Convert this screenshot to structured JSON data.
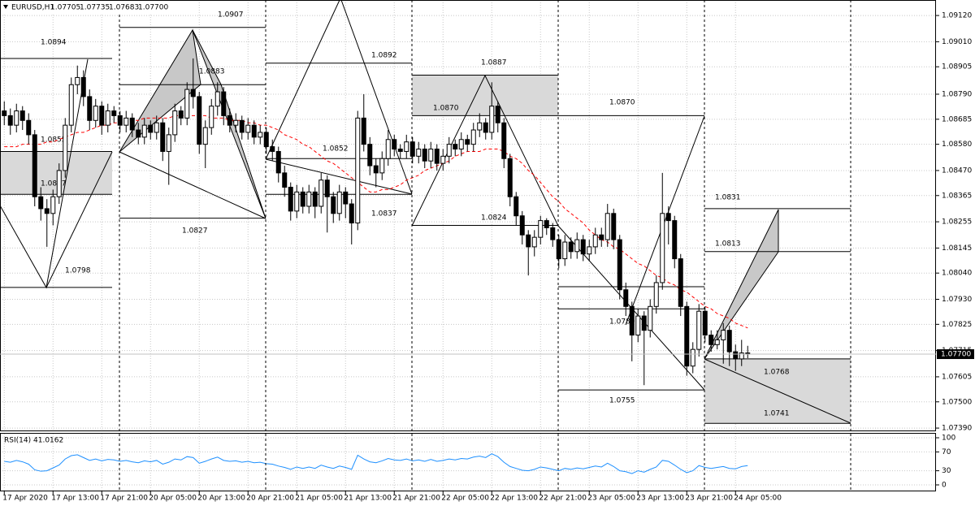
{
  "chart_data": {
    "type": "candlestick",
    "symbol": "EURUSD,H1",
    "last_candle_labels": [
      "1.07705",
      "1.07735",
      "1.07683",
      "1.07700"
    ],
    "ohlc": [
      [
        1.0872,
        1.0876,
        1.0866,
        1.087
      ],
      [
        1.087,
        1.0873,
        1.0862,
        1.0866
      ],
      [
        1.0866,
        1.0875,
        1.0863,
        1.0872
      ],
      [
        1.0872,
        1.0874,
        1.0864,
        1.0868
      ],
      [
        1.0868,
        1.0871,
        1.0858,
        1.0862
      ],
      [
        1.0862,
        1.0864,
        1.0832,
        1.0836
      ],
      [
        1.0836,
        1.084,
        1.0826,
        1.0831
      ],
      [
        1.0831,
        1.0835,
        1.0815,
        1.0829
      ],
      [
        1.0829,
        1.0839,
        1.0824,
        1.0836
      ],
      [
        1.0836,
        1.085,
        1.0833,
        1.0847
      ],
      [
        1.0847,
        1.0869,
        1.0844,
        1.0866
      ],
      [
        1.0866,
        1.0886,
        1.0863,
        1.0883
      ],
      [
        1.0883,
        1.0891,
        1.0879,
        1.0886
      ],
      [
        1.0886,
        1.0889,
        1.0874,
        1.0878
      ],
      [
        1.0878,
        1.0881,
        1.0864,
        1.0868
      ],
      [
        1.0868,
        1.0877,
        1.0865,
        1.0874
      ],
      [
        1.0874,
        1.0876,
        1.0862,
        1.0866
      ],
      [
        1.0866,
        1.0875,
        1.0863,
        1.0872
      ],
      [
        1.0872,
        1.0874,
        1.0867,
        1.087
      ],
      [
        1.087,
        1.0872,
        1.0863,
        1.0866
      ],
      [
        1.0866,
        1.0872,
        1.0863,
        1.0869
      ],
      [
        1.0869,
        1.0871,
        1.0861,
        1.0864
      ],
      [
        1.0864,
        1.0867,
        1.0858,
        1.0861
      ],
      [
        1.0861,
        1.0869,
        1.0858,
        1.0866
      ],
      [
        1.0866,
        1.0868,
        1.086,
        1.0863
      ],
      [
        1.0863,
        1.087,
        1.086,
        1.0867
      ],
      [
        1.0867,
        1.0869,
        1.0851,
        1.0855
      ],
      [
        1.0855,
        1.0865,
        1.0841,
        1.0862
      ],
      [
        1.0862,
        1.0875,
        1.0859,
        1.0872
      ],
      [
        1.0872,
        1.0874,
        1.0866,
        1.0869
      ],
      [
        1.0869,
        1.0884,
        1.0866,
        1.0881
      ],
      [
        1.0881,
        1.0894,
        1.0873,
        1.0878
      ],
      [
        1.0878,
        1.088,
        1.0854,
        1.0858
      ],
      [
        1.0858,
        1.0868,
        1.0848,
        1.0865
      ],
      [
        1.0865,
        1.0877,
        1.0862,
        1.0874
      ],
      [
        1.0874,
        1.0884,
        1.087,
        1.088
      ],
      [
        1.088,
        1.0882,
        1.0866,
        1.087
      ],
      [
        1.087,
        1.0873,
        1.0863,
        1.0866
      ],
      [
        1.0866,
        1.0871,
        1.0863,
        1.0868
      ],
      [
        1.0868,
        1.087,
        1.086,
        1.0863
      ],
      [
        1.0863,
        1.0869,
        1.086,
        1.0866
      ],
      [
        1.0866,
        1.0868,
        1.0858,
        1.0861
      ],
      [
        1.0861,
        1.0866,
        1.0858,
        1.0863
      ],
      [
        1.0863,
        1.0865,
        1.0854,
        1.0857
      ],
      [
        1.0857,
        1.086,
        1.0851,
        1.0855
      ],
      [
        1.0855,
        1.0857,
        1.0842,
        1.0846
      ],
      [
        1.0846,
        1.0849,
        1.0836,
        1.084
      ],
      [
        1.084,
        1.0842,
        1.0826,
        1.083
      ],
      [
        1.083,
        1.0841,
        1.0827,
        1.0838
      ],
      [
        1.0838,
        1.084,
        1.0829,
        1.0832
      ],
      [
        1.0832,
        1.0841,
        1.0829,
        1.0838
      ],
      [
        1.0838,
        1.084,
        1.0827,
        1.0832
      ],
      [
        1.0832,
        1.0846,
        1.0829,
        1.0843
      ],
      [
        1.0843,
        1.0845,
        1.0821,
        1.0836
      ],
      [
        1.0836,
        1.0838,
        1.0825,
        1.0829
      ],
      [
        1.0829,
        1.0841,
        1.0826,
        1.0838
      ],
      [
        1.0838,
        1.084,
        1.0827,
        1.0833
      ],
      [
        1.0833,
        1.0835,
        1.0816,
        1.0825
      ],
      [
        1.0825,
        1.0872,
        1.0822,
        1.0869
      ],
      [
        1.0869,
        1.0879,
        1.0855,
        1.0858
      ],
      [
        1.0858,
        1.0861,
        1.0845,
        1.0849
      ],
      [
        1.0849,
        1.0852,
        1.084,
        1.0846
      ],
      [
        1.0846,
        1.0855,
        1.0843,
        1.0852
      ],
      [
        1.0852,
        1.0864,
        1.0849,
        1.086
      ],
      [
        1.086,
        1.0862,
        1.0853,
        1.0856
      ],
      [
        1.0856,
        1.0858,
        1.0852,
        1.0855
      ],
      [
        1.0855,
        1.0862,
        1.0852,
        1.0859
      ],
      [
        1.0859,
        1.0861,
        1.085,
        1.0853
      ],
      [
        1.0853,
        1.0859,
        1.085,
        1.0856
      ],
      [
        1.0856,
        1.0858,
        1.0848,
        1.0851
      ],
      [
        1.0851,
        1.0859,
        1.0848,
        1.0856
      ],
      [
        1.0856,
        1.0858,
        1.0847,
        1.085
      ],
      [
        1.085,
        1.0856,
        1.0847,
        1.0853
      ],
      [
        1.0853,
        1.0861,
        1.085,
        1.0858
      ],
      [
        1.0858,
        1.086,
        1.0853,
        1.0856
      ],
      [
        1.0856,
        1.0863,
        1.0853,
        1.086
      ],
      [
        1.086,
        1.0862,
        1.0855,
        1.0858
      ],
      [
        1.0858,
        1.0867,
        1.0855,
        1.0864
      ],
      [
        1.0864,
        1.0871,
        1.0861,
        1.0867
      ],
      [
        1.0867,
        1.0869,
        1.086,
        1.0863
      ],
      [
        1.0863,
        1.0884,
        1.086,
        1.0874
      ],
      [
        1.0874,
        1.0876,
        1.0863,
        1.0867
      ],
      [
        1.0867,
        1.0869,
        1.0848,
        1.0852
      ],
      [
        1.0852,
        1.0854,
        1.0832,
        1.0836
      ],
      [
        1.0836,
        1.0838,
        1.0824,
        1.0828
      ],
      [
        1.0828,
        1.083,
        1.0816,
        1.082
      ],
      [
        1.082,
        1.0822,
        1.0803,
        1.0815
      ],
      [
        1.0815,
        1.0822,
        1.0811,
        1.0819
      ],
      [
        1.0819,
        1.0828,
        1.0816,
        1.0826
      ],
      [
        1.0826,
        1.0827,
        1.082,
        1.0823
      ],
      [
        1.0823,
        1.0825,
        1.0815,
        1.0818
      ],
      [
        1.0818,
        1.082,
        1.0806,
        1.081
      ],
      [
        1.081,
        1.082,
        1.0807,
        1.0817
      ],
      [
        1.0817,
        1.0819,
        1.081,
        1.0813
      ],
      [
        1.0813,
        1.0821,
        1.081,
        1.0818
      ],
      [
        1.0818,
        1.082,
        1.0809,
        1.0812
      ],
      [
        1.0812,
        1.0818,
        1.0809,
        1.0815
      ],
      [
        1.0815,
        1.0823,
        1.0812,
        1.082
      ],
      [
        1.082,
        1.0823,
        1.0815,
        1.0818
      ],
      [
        1.0818,
        1.0833,
        1.0815,
        1.0829
      ],
      [
        1.0829,
        1.0831,
        1.0814,
        1.0818
      ],
      [
        1.0818,
        1.082,
        1.0793,
        1.0797
      ],
      [
        1.0797,
        1.08,
        1.0786,
        1.079
      ],
      [
        1.079,
        1.0792,
        1.0767,
        1.0778
      ],
      [
        1.0778,
        1.0789,
        1.0775,
        1.0786
      ],
      [
        1.0786,
        1.0788,
        1.0757,
        1.078
      ],
      [
        1.078,
        1.0793,
        1.0777,
        1.079
      ],
      [
        1.079,
        1.0803,
        1.0787,
        1.08
      ],
      [
        1.08,
        1.0846,
        1.0797,
        1.0829
      ],
      [
        1.0829,
        1.0832,
        1.0816,
        1.0826
      ],
      [
        1.0826,
        1.0828,
        1.0806,
        1.081
      ],
      [
        1.081,
        1.0812,
        1.0786,
        1.079
      ],
      [
        1.079,
        1.0792,
        1.0761,
        1.0765
      ],
      [
        1.0765,
        1.0775,
        1.0762,
        1.0772
      ],
      [
        1.0772,
        1.0791,
        1.0769,
        1.0788
      ],
      [
        1.0788,
        1.079,
        1.0775,
        1.0778
      ],
      [
        1.0778,
        1.078,
        1.0771,
        1.0774
      ],
      [
        1.0774,
        1.078,
        1.0772,
        1.0776
      ],
      [
        1.0776,
        1.0783,
        1.0766,
        1.078
      ],
      [
        1.078,
        1.0782,
        1.0765,
        1.0771
      ],
      [
        1.0771,
        1.0774,
        1.0763,
        1.0768
      ],
      [
        1.0768,
        1.0776,
        1.0765,
        1.07705
      ],
      [
        1.07705,
        1.07735,
        1.07683,
        1.077
      ]
    ],
    "ma": {
      "color": "#ff0000",
      "values": [
        1.0857,
        1.0857,
        1.0857,
        1.0858,
        1.0858,
        1.0858,
        1.0858,
        1.0859,
        1.0859,
        1.086,
        1.0861,
        1.0862,
        1.0863,
        1.0863,
        1.0864,
        1.0865,
        1.0866,
        1.0866,
        1.0867,
        1.0867,
        1.0868,
        1.0868,
        1.0868,
        1.0869,
        1.0869,
        1.0869,
        1.0869,
        1.0869,
        1.087,
        1.087,
        1.087,
        1.087,
        1.087,
        1.087,
        1.0869,
        1.0869,
        1.0869,
        1.0868,
        1.0868,
        1.0868,
        1.0867,
        1.0867,
        1.0866,
        1.0866,
        1.0865,
        1.0864,
        1.0862,
        1.0861,
        1.086,
        1.0858,
        1.0857,
        1.0855,
        1.0853,
        1.0851,
        1.085,
        1.0848,
        1.0846,
        1.0844,
        1.0842,
        1.084,
        1.0838,
        1.0838,
        1.0839,
        1.0839,
        1.084,
        1.0841,
        1.0843,
        1.0844,
        1.0845,
        1.0847,
        1.0848,
        1.0849,
        1.085,
        1.0851,
        1.0853,
        1.0854,
        1.0855,
        1.0855,
        1.0855,
        1.0856,
        1.0856,
        1.0856,
        1.0855,
        1.0853,
        1.0852,
        1.085,
        1.0847,
        1.0845,
        1.0842,
        1.0839,
        1.0836,
        1.0834,
        1.0831,
        1.0829,
        1.0827,
        1.0825,
        1.0822,
        1.082,
        1.0818,
        1.0817,
        1.0815,
        1.0814,
        1.0812,
        1.081,
        1.0808,
        1.0807,
        1.0805,
        1.0803,
        1.0802,
        1.08,
        1.0799,
        1.0797,
        1.0796,
        1.0794,
        1.0792,
        1.079,
        1.0789,
        1.0787,
        1.0786,
        1.0785,
        1.0783,
        1.0782,
        1.0781
      ]
    },
    "xlim": [
      -0.7,
      152.9
    ],
    "ylim": [
      1.0738,
      1.09185
    ],
    "xticks": [
      {
        "value": 0,
        "label": "17 Apr 2020"
      },
      {
        "value": 8,
        "label": "17 Apr 13:00"
      },
      {
        "value": 16,
        "label": "17 Apr 21:00"
      },
      {
        "value": 24,
        "label": "20 Apr 05:00"
      },
      {
        "value": 32,
        "label": "20 Apr 13:00"
      },
      {
        "value": 40,
        "label": "20 Apr 21:00"
      },
      {
        "value": 48,
        "label": "21 Apr 05:00"
      },
      {
        "value": 56,
        "label": "21 Apr 13:00"
      },
      {
        "value": 64,
        "label": "21 Apr 21:00"
      },
      {
        "value": 72,
        "label": "22 Apr 05:00"
      },
      {
        "value": 80,
        "label": "22 Apr 13:00"
      },
      {
        "value": 88,
        "label": "22 Apr 21:00"
      },
      {
        "value": 96,
        "label": "23 Apr 05:00"
      },
      {
        "value": 104,
        "label": "23 Apr 13:00"
      },
      {
        "value": 112,
        "label": "23 Apr 21:00"
      },
      {
        "value": 120,
        "label": "24 Apr 05:00"
      }
    ],
    "yticks": [
      {
        "value": 1.0912,
        "label": "1.09120"
      },
      {
        "value": 1.0901,
        "label": "1.09010"
      },
      {
        "value": 1.08905,
        "label": "1.08905"
      },
      {
        "value": 1.0879,
        "label": "1.08790"
      },
      {
        "value": 1.08685,
        "label": "1.08685"
      },
      {
        "value": 1.0858,
        "label": "1.08580"
      },
      {
        "value": 1.0847,
        "label": "1.08470"
      },
      {
        "value": 1.08365,
        "label": "1.08365"
      },
      {
        "value": 1.08255,
        "label": "1.08255"
      },
      {
        "value": 1.08145,
        "label": "1.08145"
      },
      {
        "value": 1.0804,
        "label": "1.08040"
      },
      {
        "value": 1.0793,
        "label": "1.07930"
      },
      {
        "value": 1.07825,
        "label": "1.07825"
      },
      {
        "value": 1.07715,
        "label": "1.07715"
      },
      {
        "value": 1.07605,
        "label": "1.07605"
      },
      {
        "value": 1.075,
        "label": "1.07500"
      },
      {
        "value": 1.0739,
        "label": "1.07390"
      }
    ],
    "grid": true,
    "levels": [
      1.0894,
      1.0855,
      1.0837,
      1.0798,
      1.0907,
      1.0883,
      1.0827,
      1.0892,
      1.0852,
      1.0837,
      1.0887,
      {
        "value": 1.087,
        "label": "1.0870"
      },
      1.0824,
      {
        "value": 1.087,
        "label": "1.0870"
      },
      1.0789,
      1.0755,
      1.0831,
      1.0813,
      1.0768,
      1.0741
    ],
    "rsi": {
      "name": "RSI(14)",
      "color": "#1e90ff",
      "ylim": [
        0,
        100
      ],
      "yticks": [
        100,
        70,
        30,
        0
      ],
      "values": [
        50,
        48,
        52,
        49,
        44,
        32,
        29,
        30,
        36,
        42,
        55,
        62,
        64,
        58,
        52,
        55,
        51,
        54,
        53,
        50,
        52,
        49,
        47,
        51,
        49,
        52,
        44,
        48,
        55,
        53,
        60,
        58,
        46,
        50,
        55,
        59,
        52,
        50,
        51,
        48,
        50,
        47,
        48,
        45,
        44,
        40,
        37,
        33,
        38,
        35,
        38,
        35,
        42,
        38,
        35,
        40,
        37,
        33,
        63,
        55,
        49,
        47,
        51,
        56,
        53,
        52,
        55,
        51,
        53,
        50,
        54,
        50,
        52,
        55,
        53,
        56,
        55,
        59,
        61,
        58,
        66,
        60,
        48,
        39,
        35,
        31,
        30,
        33,
        38,
        36,
        33,
        30,
        35,
        33,
        36,
        34,
        37,
        40,
        38,
        46,
        39,
        30,
        28,
        24,
        30,
        27,
        33,
        38,
        52,
        50,
        42,
        33,
        26,
        30,
        41,
        37,
        35,
        37,
        39,
        35,
        34,
        39,
        41.0162
      ]
    }
  }
}
